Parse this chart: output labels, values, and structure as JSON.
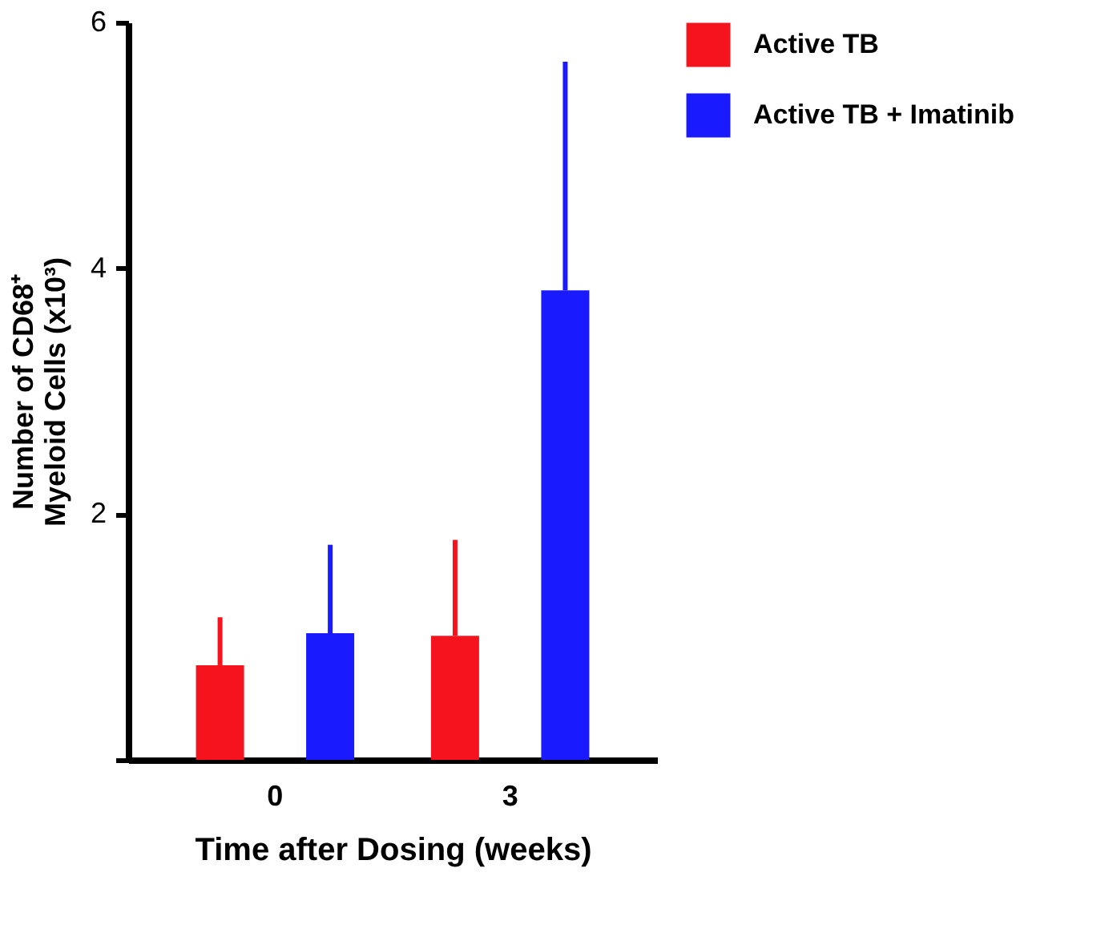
{
  "chart_data": {
    "type": "bar",
    "xlabel": "Time after Dosing (weeks)",
    "ylabel": "Number of CD68⁺ Myeloid Cells (x10³)",
    "categories": [
      "0",
      "3"
    ],
    "series": [
      {
        "name": "Active TB",
        "color": "#f5141e",
        "values": [
          0.77,
          1.01
        ],
        "errors": [
          [
            0.77,
            1.16
          ],
          [
            1.01,
            1.79
          ]
        ]
      },
      {
        "name": "Active TB + Imatinib",
        "color": "#1a1aff",
        "values": [
          1.03,
          3.82
        ],
        "errors": [
          [
            1.03,
            1.75
          ],
          [
            3.82,
            5.68
          ]
        ]
      }
    ],
    "ylim": [
      0,
      6
    ],
    "yticks": [
      {
        "value": 0,
        "label": null
      },
      2,
      4,
      6
    ],
    "grid": false,
    "legend": "right"
  }
}
